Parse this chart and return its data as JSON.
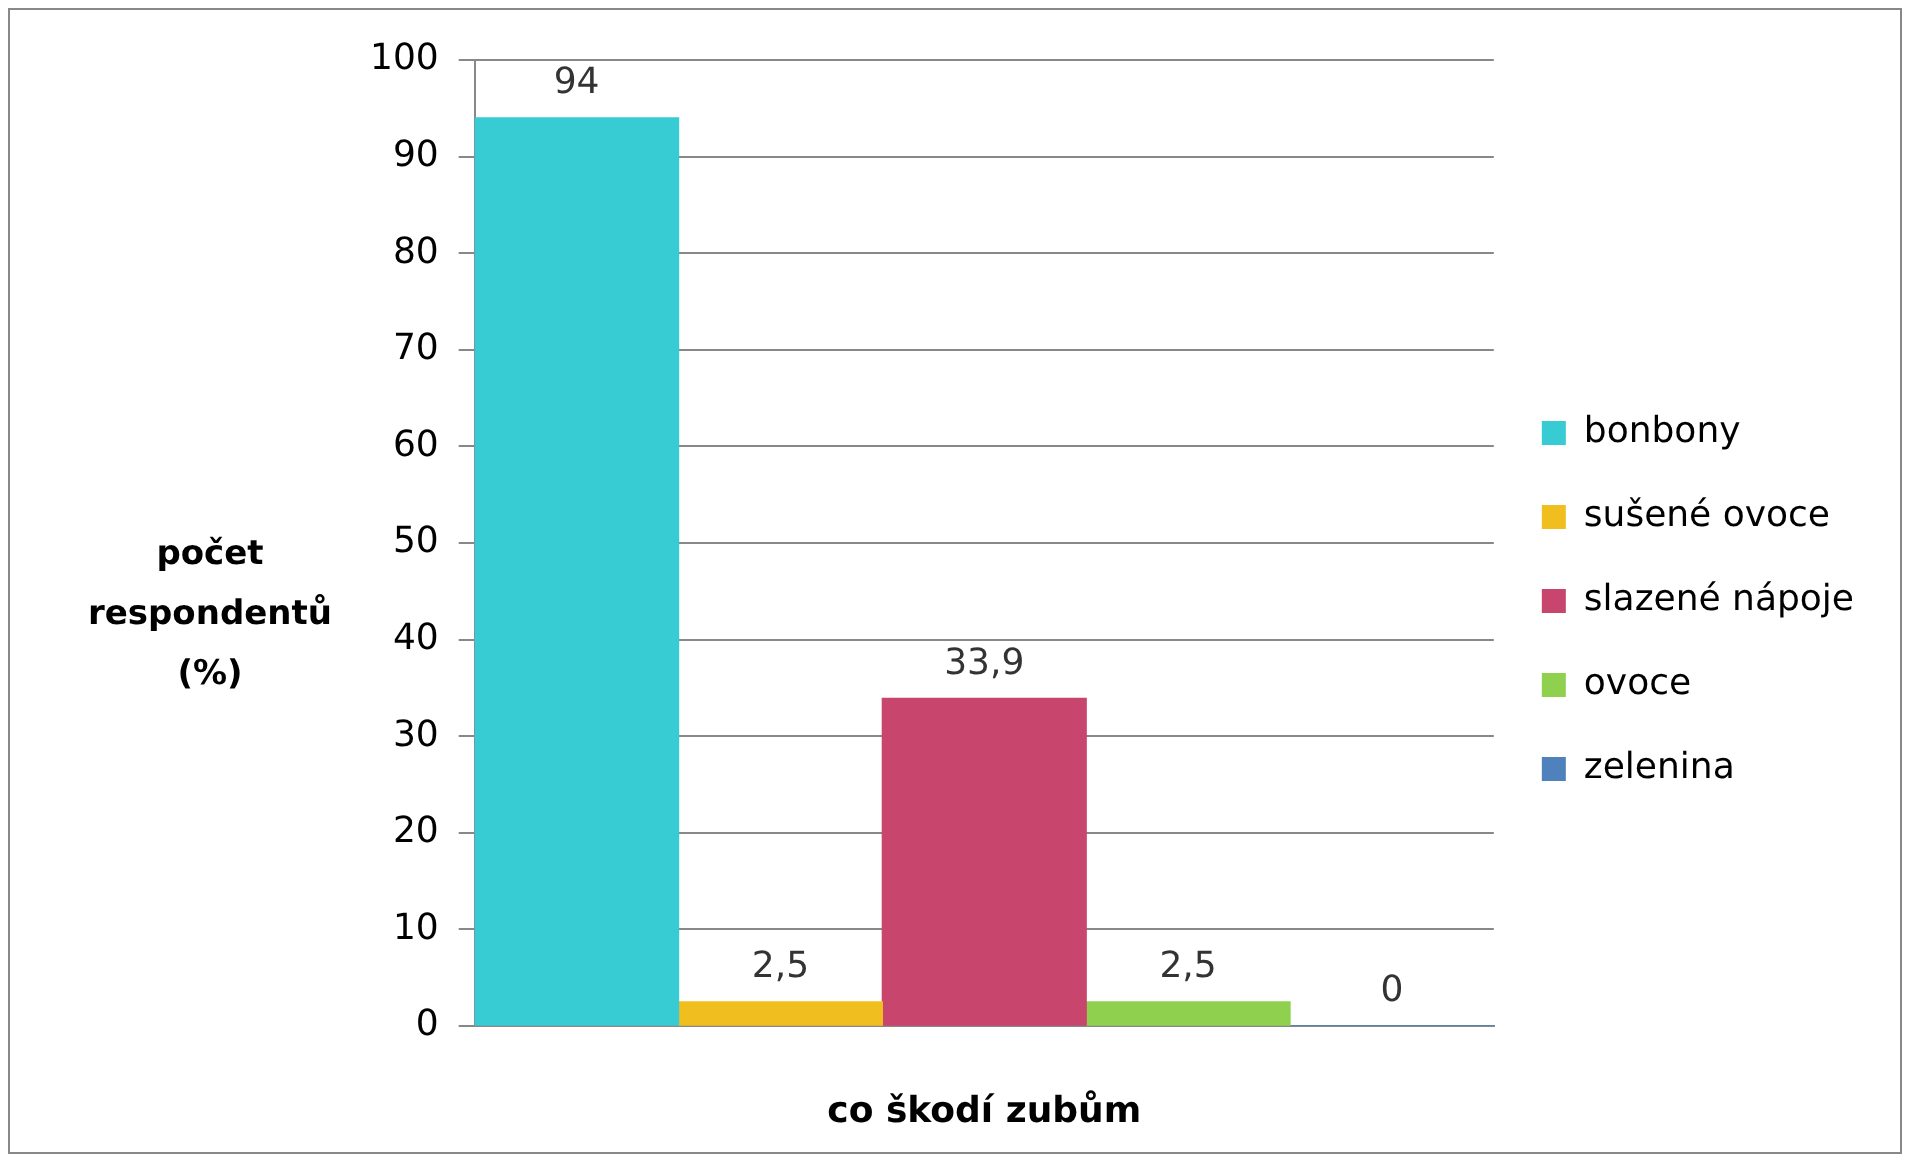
{
  "chart_data": {
    "type": "bar",
    "xlabel": "co škodí zubům",
    "ylabel": "počet respondentů (%)",
    "categories": [
      null
    ],
    "series": [
      {
        "name": "bonbony",
        "color": "#37cbd3",
        "values": [
          94
        ],
        "value_labels": [
          "94"
        ]
      },
      {
        "name": "sušené ovoce",
        "color": "#f0bf1f",
        "values": [
          2.5
        ],
        "value_labels": [
          "2,5"
        ]
      },
      {
        "name": "slazené nápoje",
        "color": "#c8456e",
        "values": [
          33.9
        ],
        "value_labels": [
          "33,9"
        ]
      },
      {
        "name": "ovoce",
        "color": "#8fd14f",
        "values": [
          2.5
        ],
        "value_labels": [
          "2,5"
        ]
      },
      {
        "name": "zelenina",
        "color": "#4f81bd",
        "values": [
          0
        ],
        "value_labels": [
          "0"
        ]
      }
    ],
    "ylim": [
      0,
      100
    ],
    "yticks": [
      0,
      10,
      20,
      30,
      40,
      50,
      60,
      70,
      80,
      90,
      100
    ],
    "grid": "y",
    "legend": "right"
  }
}
